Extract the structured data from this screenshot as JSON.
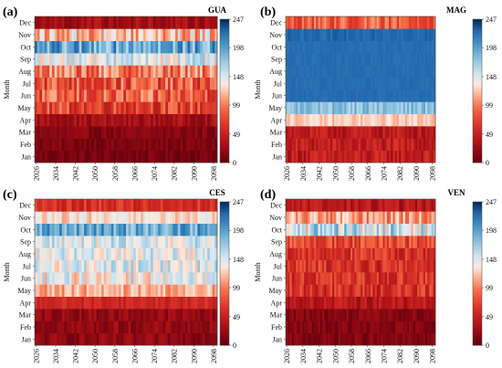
{
  "chart_data": [
    {
      "type": "heatmap",
      "panel_label": "(a)",
      "colorbar_title": "GUA",
      "ylabel": "Month",
      "months": [
        "Jan",
        "Feb",
        "Mar",
        "Apr",
        "May",
        "Jun",
        "Jul",
        "Aug",
        "Sep",
        "Oct",
        "Nov",
        "Dec"
      ],
      "x_ticks": [
        "2026",
        "2034",
        "2042",
        "2050",
        "2058",
        "2066",
        "2074",
        "2082",
        "2090",
        "2098"
      ],
      "x_range": [
        2026,
        2100
      ],
      "colorbar_ticks": [
        0,
        49,
        99,
        148,
        198,
        247
      ],
      "vlim": [
        0,
        247
      ],
      "monthly_mean": [
        8,
        10,
        14,
        30,
        72,
        82,
        80,
        95,
        150,
        195,
        120,
        28
      ],
      "monthly_spread": [
        10,
        10,
        12,
        14,
        30,
        35,
        35,
        35,
        30,
        35,
        40,
        16
      ]
    },
    {
      "type": "heatmap",
      "panel_label": "(b)",
      "colorbar_title": "MAG",
      "ylabel": "Month",
      "months": [
        "Jan",
        "Feb",
        "Mar",
        "Apr",
        "May",
        "Jun",
        "Jul",
        "Aug",
        "Sep",
        "Oct",
        "Nov",
        "Dec"
      ],
      "x_ticks": [
        "2026",
        "2034",
        "2042",
        "2050",
        "2058",
        "2066",
        "2074",
        "2082",
        "2090",
        "2098"
      ],
      "x_range": [
        2026,
        2100
      ],
      "colorbar_ticks": [
        0,
        49,
        99,
        148,
        198,
        247
      ],
      "vlim": [
        0,
        247
      ],
      "monthly_mean": [
        45,
        45,
        42,
        125,
        180,
        226,
        226,
        226,
        226,
        226,
        228,
        85
      ],
      "monthly_spread": [
        20,
        20,
        18,
        12,
        18,
        3,
        3,
        3,
        3,
        3,
        6,
        25
      ]
    },
    {
      "type": "heatmap",
      "panel_label": "(c)",
      "colorbar_title": "CES",
      "ylabel": "Month",
      "months": [
        "Jan",
        "Feb",
        "Mar",
        "Apr",
        "May",
        "Jun",
        "Jul",
        "Aug",
        "Sep",
        "Oct",
        "Nov",
        "Dec"
      ],
      "x_ticks": [
        "2026",
        "2034",
        "2042",
        "2050",
        "2058",
        "2066",
        "2074",
        "2082",
        "2090",
        "2098"
      ],
      "x_range": [
        2026,
        2100
      ],
      "colorbar_ticks": [
        0,
        49,
        99,
        148,
        198,
        247
      ],
      "vlim": [
        0,
        247
      ],
      "monthly_mean": [
        18,
        20,
        22,
        55,
        115,
        140,
        150,
        148,
        150,
        195,
        130,
        60
      ],
      "monthly_spread": [
        14,
        14,
        14,
        12,
        20,
        30,
        28,
        28,
        28,
        30,
        20,
        18
      ]
    },
    {
      "type": "heatmap",
      "panel_label": "(d)",
      "colorbar_title": "VEN",
      "ylabel": "Month",
      "months": [
        "Jan",
        "Feb",
        "Mar",
        "Apr",
        "May",
        "Jun",
        "Jul",
        "Aug",
        "Sep",
        "Oct",
        "Nov",
        "Dec"
      ],
      "x_ticks": [
        "2026",
        "2034",
        "2042",
        "2050",
        "2058",
        "2066",
        "2074",
        "2082",
        "2090",
        "2098"
      ],
      "x_range": [
        2026,
        2100
      ],
      "colorbar_ticks": [
        0,
        49,
        99,
        148,
        198,
        247
      ],
      "vlim": [
        0,
        247
      ],
      "monthly_mean": [
        12,
        12,
        15,
        40,
        60,
        62,
        62,
        62,
        75,
        155,
        110,
        40
      ],
      "monthly_spread": [
        12,
        12,
        12,
        18,
        25,
        25,
        25,
        25,
        25,
        45,
        30,
        18
      ]
    }
  ]
}
